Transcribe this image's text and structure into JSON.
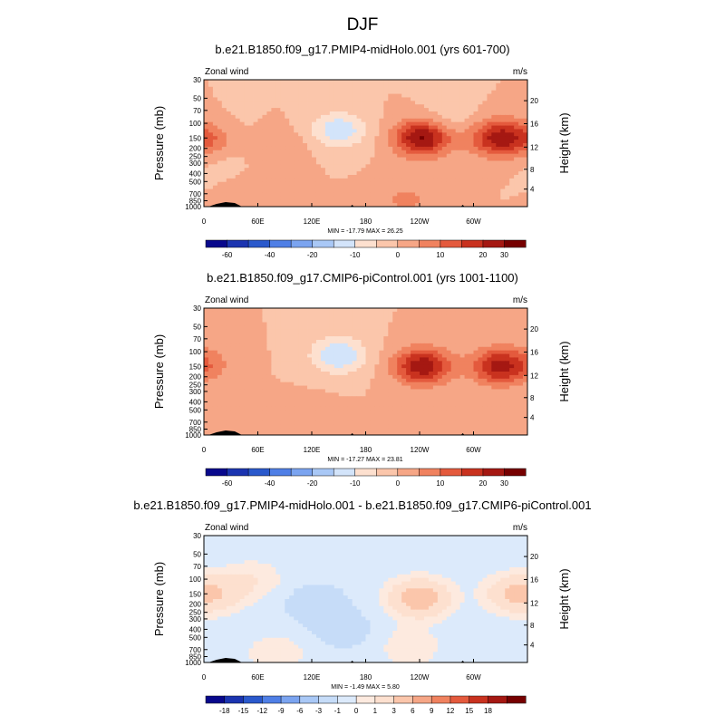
{
  "figure": {
    "title": "DJF"
  },
  "colors": {
    "wind_fill": [
      "#08088c",
      "#1b34b0",
      "#2a59cc",
      "#4f7fe6",
      "#7ba4f0",
      "#a9c8f6",
      "#d3e4fa",
      "#fde0cf",
      "#fbc6ab",
      "#f6a686",
      "#f0825f",
      "#e45a3d",
      "#c9321f",
      "#a51812",
      "#760000"
    ],
    "diff_fill": [
      "#08088c",
      "#1b34b0",
      "#2a59cc",
      "#4f7fe6",
      "#7ba4f0",
      "#a9c8f6",
      "#c6dcf8",
      "#dceafb",
      "#fdeadf",
      "#fde0cf",
      "#fbc6ab",
      "#f6a686",
      "#f0825f",
      "#e45a3d",
      "#c9321f",
      "#a51812",
      "#760000"
    ]
  },
  "chart_data": [
    {
      "type": "heatmap",
      "title": "b.e21.B1850.f09_g17.PMIP4-midHolo.001 (yrs 601-700)",
      "left_label": "Zonal wind",
      "right_label": "m/s",
      "ylabel": "Pressure (mb)",
      "ylabel_right": "Height (km)",
      "x_ticks": [
        "0",
        "60E",
        "120E",
        "180",
        "120W",
        "60W"
      ],
      "y_ticks": [
        "30",
        "50",
        "70",
        "100",
        "150",
        "200",
        "250",
        "300",
        "400",
        "500",
        "700",
        "850",
        "1000"
      ],
      "y_ticks_right": [
        "20",
        "16",
        "12",
        "8",
        "4"
      ],
      "stats": "MIN = -17.79  MAX =  26.25",
      "colorbar_labels": [
        "-60",
        "-40",
        "-20",
        "-10",
        "0",
        "10",
        "20",
        "30"
      ],
      "colorbar_levels": [
        -70,
        -60,
        -50,
        -40,
        -30,
        -20,
        -15,
        -10,
        -5,
        0,
        5,
        10,
        15,
        20,
        25,
        30
      ],
      "blobs": [
        {
          "lon": 150,
          "p": 120,
          "amp": -14
        },
        {
          "lon": 25,
          "p": 130,
          "amp": -3
        },
        {
          "lon": 270,
          "p": 90,
          "amp": -4
        },
        {
          "lon": 15,
          "p": 220,
          "amp": -4
        },
        {
          "lon": 10,
          "p": 160,
          "amp": 12
        },
        {
          "lon": 243,
          "p": 150,
          "amp": 26
        },
        {
          "lon": 328,
          "p": 150,
          "amp": 22
        },
        {
          "lon": 85,
          "p": 190,
          "amp": 4
        },
        {
          "lon": 225,
          "p": 820,
          "amp": 6
        },
        {
          "lon": 70,
          "p": 800,
          "amp": 5
        }
      ]
    },
    {
      "type": "heatmap",
      "title": "b.e21.B1850.f09_g17.CMIP6-piControl.001 (yrs 1001-1100)",
      "left_label": "Zonal wind",
      "right_label": "m/s",
      "ylabel": "Pressure (mb)",
      "ylabel_right": "Height (km)",
      "x_ticks": [
        "0",
        "60E",
        "120E",
        "180",
        "120W",
        "60W"
      ],
      "y_ticks": [
        "30",
        "50",
        "70",
        "100",
        "150",
        "200",
        "250",
        "300",
        "400",
        "500",
        "700",
        "850",
        "1000"
      ],
      "y_ticks_right": [
        "20",
        "16",
        "12",
        "8",
        "4"
      ],
      "stats": "MIN = -17.27  MAX =  23.81",
      "colorbar_labels": [
        "-60",
        "-40",
        "-20",
        "-10",
        "0",
        "10",
        "20",
        "30"
      ],
      "colorbar_levels": [
        -70,
        -60,
        -50,
        -40,
        -30,
        -20,
        -15,
        -10,
        -5,
        0,
        5,
        10,
        15,
        20,
        25,
        30
      ],
      "blobs": [
        {
          "lon": 150,
          "p": 110,
          "amp": -15
        },
        {
          "lon": 5,
          "p": 140,
          "amp": 6
        },
        {
          "lon": 243,
          "p": 150,
          "amp": 24
        },
        {
          "lon": 328,
          "p": 150,
          "amp": 21
        },
        {
          "lon": 110,
          "p": 650,
          "amp": 5
        },
        {
          "lon": 225,
          "p": 820,
          "amp": 4
        }
      ]
    },
    {
      "type": "heatmap",
      "title": "b.e21.B1850.f09_g17.PMIP4-midHolo.001 - b.e21.B1850.f09_g17.CMIP6-piControl.001",
      "left_label": "Zonal wind",
      "right_label": "m/s",
      "ylabel": "Pressure (mb)",
      "ylabel_right": "Height (km)",
      "x_ticks": [
        "0",
        "60E",
        "120E",
        "180",
        "120W",
        "60W"
      ],
      "y_ticks": [
        "30",
        "50",
        "70",
        "100",
        "150",
        "200",
        "250",
        "300",
        "400",
        "500",
        "700",
        "850",
        "1000"
      ],
      "y_ticks_right": [
        "20",
        "16",
        "12",
        "8",
        "4"
      ],
      "stats": "MIN = -1.49  MAX =  5.80",
      "colorbar_labels": [
        "-18",
        "-15",
        "-12",
        "-9",
        "-6",
        "-3",
        "-1",
        "0",
        "1",
        "3",
        "6",
        "9",
        "12",
        "15",
        "18"
      ],
      "colorbar_levels": [
        -21,
        -18,
        -15,
        -12,
        -9,
        -6,
        -3,
        -1,
        0,
        1,
        3,
        6,
        9,
        12,
        15,
        18
      ],
      "blobs": [
        {
          "lon": 240,
          "p": 170,
          "amp": 5.5
        },
        {
          "lon": 15,
          "p": 150,
          "amp": 2.5
        },
        {
          "lon": 345,
          "p": 150,
          "amp": 3.5
        },
        {
          "lon": 125,
          "p": 200,
          "amp": -1.6
        },
        {
          "lon": 55,
          "p": 100,
          "amp": 1.5
        },
        {
          "lon": 80,
          "p": 780,
          "amp": 1.5
        },
        {
          "lon": 230,
          "p": 650,
          "amp": 1.5
        },
        {
          "lon": 155,
          "p": 400,
          "amp": -1.2
        }
      ],
      "base": -0.6
    }
  ]
}
